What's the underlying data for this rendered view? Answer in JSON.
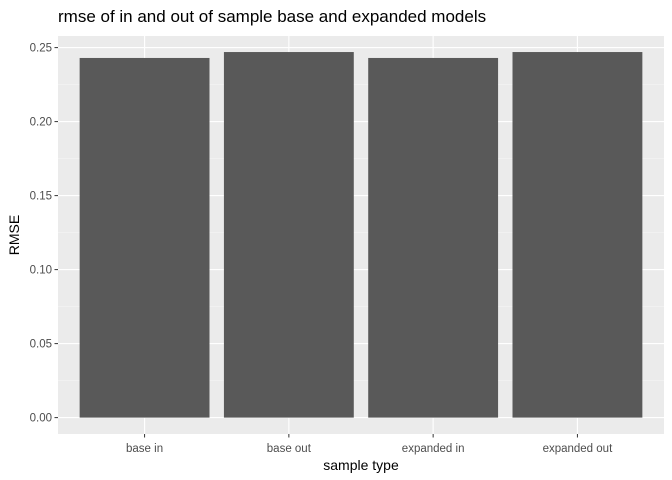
{
  "chart_data": {
    "type": "bar",
    "title": "rmse of in and out of sample base and expanded models",
    "xlabel": "sample type",
    "ylabel": "RMSE",
    "categories": [
      "base in",
      "base out",
      "expanded in",
      "expanded out"
    ],
    "values": [
      0.243,
      0.247,
      0.243,
      0.247
    ],
    "ylim": [
      0,
      0.25
    ],
    "yticks": [
      0.0,
      0.05,
      0.1,
      0.15,
      0.2,
      0.25
    ],
    "ytick_labels": [
      "0.00",
      "0.05",
      "0.10",
      "0.15",
      "0.20",
      "0.25"
    ],
    "grid": true,
    "legend": "none",
    "colors": {
      "bar": "#595959",
      "panel": "#ebebeb",
      "grid_major": "#ffffff",
      "grid_minor": "#f5f5f5",
      "tick_text": "#4d4d4d"
    }
  }
}
